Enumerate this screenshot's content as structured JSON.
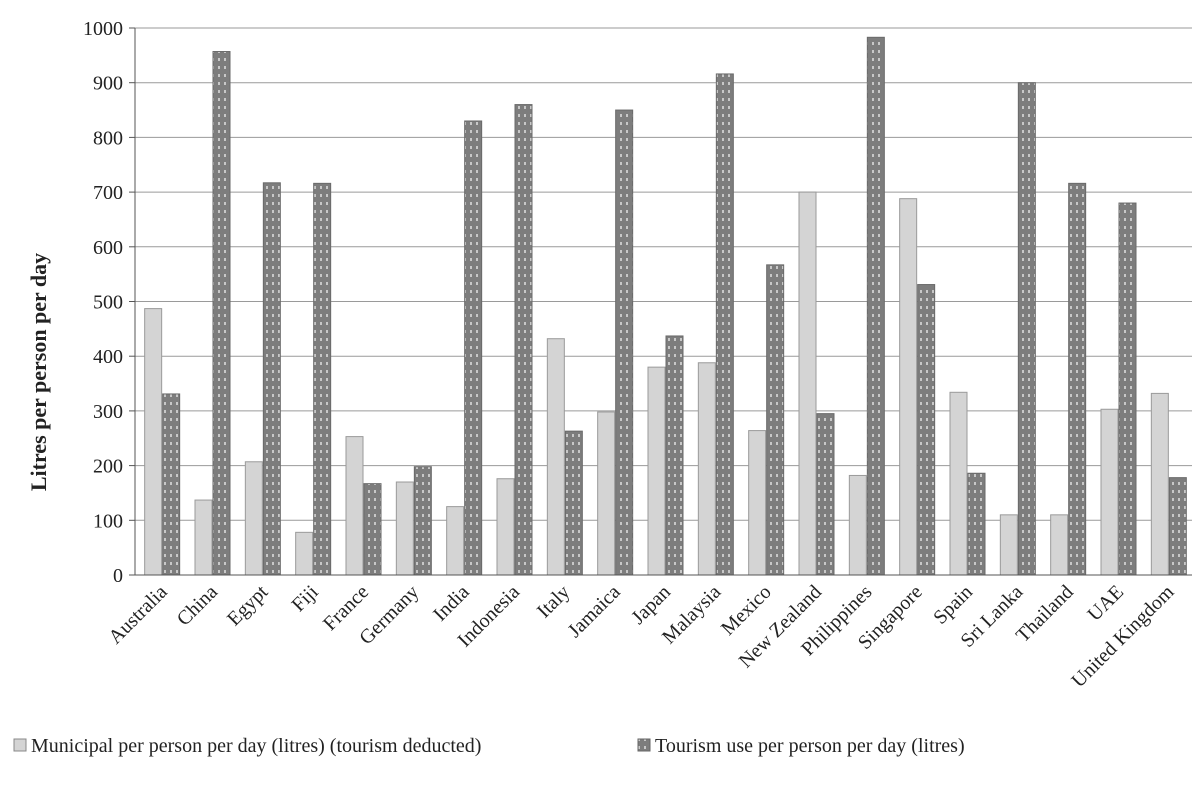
{
  "chart_data": {
    "type": "bar",
    "ylabel": "Litres per person per day",
    "ylim": [
      0,
      1000
    ],
    "ytick_step": 100,
    "grid": true,
    "legend_position": "bottom",
    "categories": [
      "Australia",
      "China",
      "Egypt",
      "Fiji",
      "France",
      "Germany",
      "India",
      "Indonesia",
      "Italy",
      "Jamaica",
      "Japan",
      "Malaysia",
      "Mexico",
      "New Zealand",
      "Philippines",
      "Singapore",
      "Spain",
      "Sri Lanka",
      "Thailand",
      "UAE",
      "United Kingdom"
    ],
    "series": [
      {
        "name": "Municipal per person per day (litres) (tourism deducted)",
        "color": "#d4d4d4",
        "values": [
          487,
          137,
          207,
          78,
          253,
          170,
          125,
          176,
          432,
          298,
          380,
          388,
          264,
          700,
          182,
          688,
          334,
          110,
          110,
          303,
          332
        ]
      },
      {
        "name": "Tourism use per person per day (litres)",
        "color": "#7a7a7a",
        "values": [
          331,
          957,
          717,
          716,
          167,
          198,
          830,
          860,
          263,
          850,
          437,
          916,
          567,
          295,
          983,
          531,
          186,
          900,
          716,
          680,
          178
        ]
      }
    ]
  }
}
